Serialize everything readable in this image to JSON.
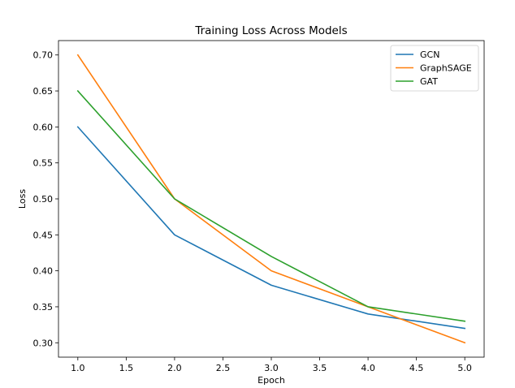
{
  "chart_data": {
    "type": "line",
    "title": "Training Loss Across Models",
    "xlabel": "Epoch",
    "ylabel": "Loss",
    "x": [
      1,
      2,
      3,
      4,
      5
    ],
    "xlim": [
      0.8,
      5.2
    ],
    "ylim": [
      0.28,
      0.72
    ],
    "xticks": [
      1.0,
      1.5,
      2.0,
      2.5,
      3.0,
      3.5,
      4.0,
      4.5,
      5.0
    ],
    "xtick_labels": [
      "1.0",
      "1.5",
      "2.0",
      "2.5",
      "3.0",
      "3.5",
      "4.0",
      "4.5",
      "5.0"
    ],
    "yticks": [
      0.3,
      0.35,
      0.4,
      0.45,
      0.5,
      0.55,
      0.6,
      0.65,
      0.7
    ],
    "ytick_labels": [
      "0.30",
      "0.35",
      "0.40",
      "0.45",
      "0.50",
      "0.55",
      "0.60",
      "0.65",
      "0.70"
    ],
    "grid": false,
    "legend_position": "top-right",
    "series": [
      {
        "name": "GCN",
        "color": "#1f77b4",
        "values": [
          0.6,
          0.45,
          0.38,
          0.34,
          0.32
        ]
      },
      {
        "name": "GraphSAGE",
        "color": "#ff7f0e",
        "values": [
          0.7,
          0.5,
          0.4,
          0.35,
          0.3
        ]
      },
      {
        "name": "GAT",
        "color": "#2ca02c",
        "values": [
          0.65,
          0.5,
          0.42,
          0.35,
          0.33
        ]
      }
    ]
  }
}
